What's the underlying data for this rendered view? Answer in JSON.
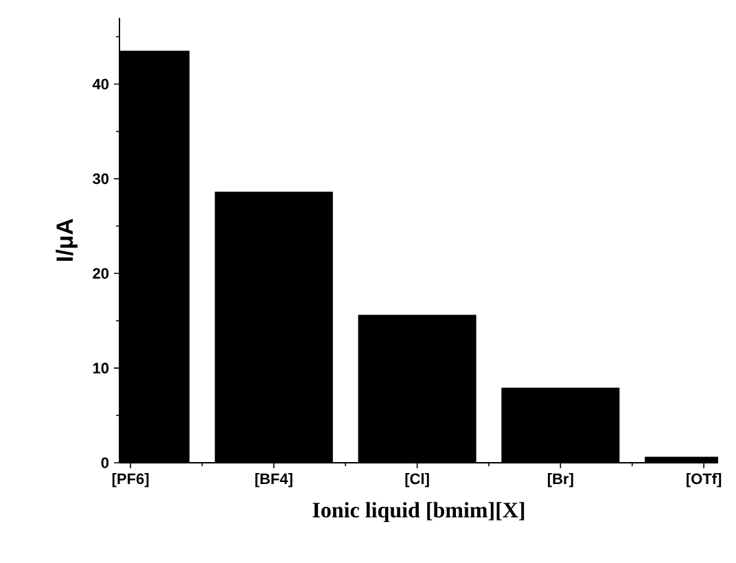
{
  "chart_data": {
    "type": "bar",
    "xlabel": "Ionic liquid [bmim][X]",
    "ylabel": "I/μA",
    "categories": [
      "[PF6]",
      "[BF4]",
      "[Cl]",
      "[Br]",
      "[OTf]"
    ],
    "values": [
      43.5,
      28.6,
      15.6,
      7.9,
      0.6
    ],
    "color": "#000000",
    "ylim": [
      0,
      47
    ],
    "yticks": [
      0,
      10,
      20,
      30,
      40
    ],
    "grid": false
  }
}
